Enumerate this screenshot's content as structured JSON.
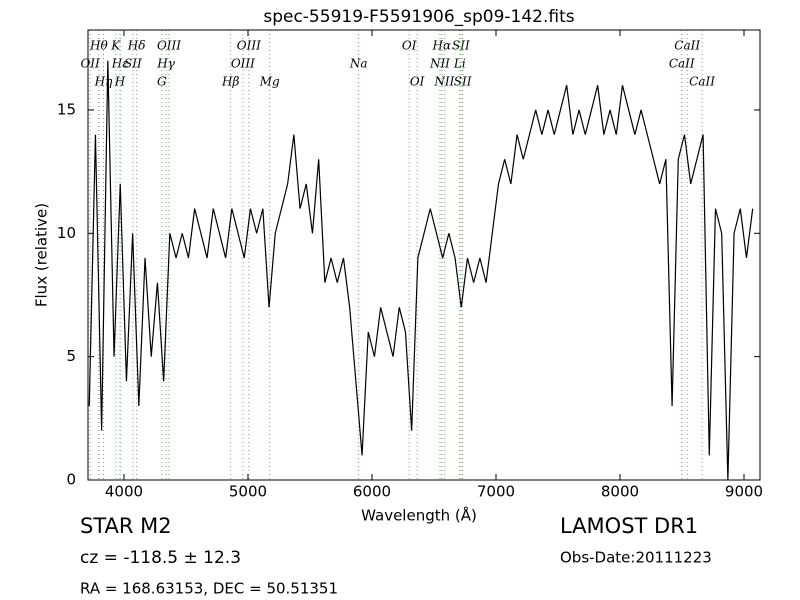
{
  "chart_data": {
    "type": "line",
    "title": "spec-55919-F5591906_sp09-142.fits",
    "x_label": "Wavelength (Å)",
    "y_label": "Flux (relative)",
    "xlim": [
      3710,
      9129
    ],
    "ylim": [
      0,
      18.24
    ],
    "xticks": [
      4000,
      5000,
      6000,
      7000,
      8000,
      9000
    ],
    "yticks": [
      0,
      5,
      10,
      15
    ],
    "grid": false,
    "series": [
      {
        "name": "flux",
        "color": "#000000",
        "x": [
          3720,
          3770,
          3820,
          3870,
          3920,
          3970,
          4020,
          4070,
          4120,
          4170,
          4220,
          4270,
          4320,
          4370,
          4420,
          4470,
          4520,
          4570,
          4620,
          4670,
          4720,
          4770,
          4820,
          4870,
          4920,
          4970,
          5020,
          5070,
          5120,
          5170,
          5220,
          5270,
          5320,
          5370,
          5420,
          5470,
          5520,
          5570,
          5620,
          5670,
          5720,
          5770,
          5820,
          5870,
          5920,
          5970,
          6020,
          6070,
          6120,
          6170,
          6220,
          6270,
          6320,
          6370,
          6420,
          6470,
          6520,
          6570,
          6620,
          6670,
          6720,
          6770,
          6820,
          6870,
          6920,
          6970,
          7020,
          7070,
          7120,
          7170,
          7220,
          7270,
          7320,
          7370,
          7420,
          7470,
          7520,
          7570,
          7620,
          7670,
          7720,
          7770,
          7820,
          7870,
          7920,
          7970,
          8020,
          8070,
          8120,
          8170,
          8220,
          8270,
          8320,
          8370,
          8420,
          8470,
          8520,
          8570,
          8620,
          8670,
          8720,
          8770,
          8820,
          8870,
          8920,
          8970,
          9020,
          9070
        ],
        "values": [
          3,
          14,
          2,
          17,
          5,
          12,
          4,
          10,
          3,
          9,
          5,
          8,
          4,
          10,
          9,
          10,
          9,
          11,
          10,
          9,
          11,
          10,
          9,
          11,
          10,
          9,
          11,
          10,
          11,
          7,
          10,
          11,
          12,
          14,
          11,
          12,
          10,
          13,
          8,
          9,
          8,
          9,
          7,
          4,
          1,
          6,
          5,
          7,
          6,
          5,
          7,
          6,
          2,
          9,
          10,
          11,
          10,
          9,
          10,
          9,
          7,
          9,
          8,
          9,
          8,
          10,
          12,
          13,
          12,
          14,
          13,
          14,
          15,
          14,
          15,
          14,
          15,
          16,
          14,
          15,
          14,
          15,
          16,
          14,
          15,
          14,
          16,
          15,
          14,
          15,
          14,
          13,
          12,
          13,
          3,
          13,
          14,
          12,
          13,
          14,
          1,
          11,
          10,
          0,
          10,
          11,
          9,
          11
        ]
      }
    ],
    "line_annotations": [
      {
        "label": "Hθ",
        "x": 3798
      },
      {
        "label": "K",
        "x": 3934
      },
      {
        "label": "OII",
        "x": 3727
      },
      {
        "label": "Hε",
        "x": 3970
      },
      {
        "label": "SII",
        "x": 4072
      },
      {
        "label": "Hη",
        "x": 3835
      },
      {
        "label": "H",
        "x": 3968
      },
      {
        "label": "Hδ",
        "x": 4102
      },
      {
        "label": "OIII",
        "x": 4363
      },
      {
        "label": "Hγ",
        "x": 4340
      },
      {
        "label": "G",
        "x": 4305
      },
      {
        "label": "OIII",
        "x": 5007
      },
      {
        "label": "OIII",
        "x": 4959
      },
      {
        "label": "Hβ",
        "x": 4861
      },
      {
        "label": "Mg",
        "x": 5175
      },
      {
        "label": "Na",
        "x": 5893
      },
      {
        "label": "OI",
        "x": 6300
      },
      {
        "label": "OI",
        "x": 6364
      },
      {
        "label": "Hα",
        "x": 6563
      },
      {
        "label": "SII",
        "x": 6717
      },
      {
        "label": "NII",
        "x": 6548
      },
      {
        "label": "Li",
        "x": 6708
      },
      {
        "label": "NII",
        "x": 6584
      },
      {
        "label": "SII",
        "x": 6731
      },
      {
        "label": "CaII",
        "x": 8542
      },
      {
        "label": "CaII",
        "x": 8498
      },
      {
        "label": "CaII",
        "x": 8662
      }
    ],
    "info_left": [
      "STAR   M2",
      "cz = -118.5 ± 12.3",
      "RA = 168.63153, DEC = 50.51351"
    ],
    "info_right": [
      "LAMOST DR1",
      "Obs-Date:20111223"
    ]
  }
}
